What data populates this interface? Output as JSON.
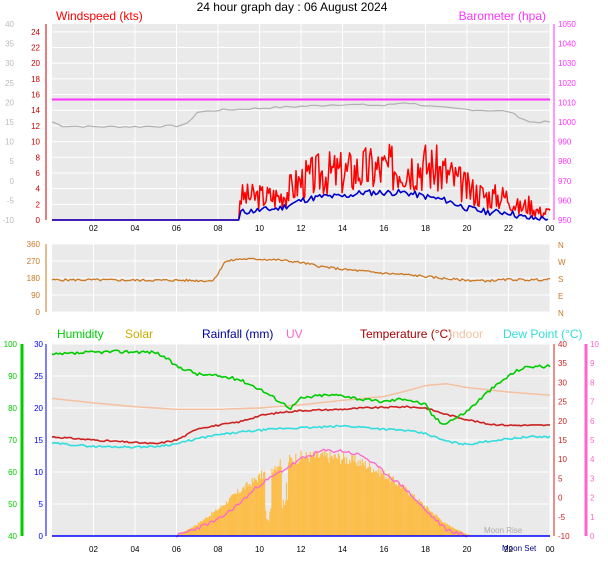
{
  "title": "24 hour graph day : 06 August 2024",
  "colors": {
    "plot_bg": "#eaeaea",
    "grid": "#ffffff",
    "wind": "#ff0000",
    "avg_wind": "#0000cc",
    "baro": "#ff33ff",
    "dir": "#cc7722",
    "humidity": "#00cc00",
    "solar": "#ffb833",
    "rain": "#0000ff",
    "uv": "#ff66cc",
    "temp": "#cc2222",
    "indoor": "#f5c0a0",
    "dew": "#33dddd",
    "faint_gray": "#bbbbbb"
  },
  "x_ticks": [
    "02",
    "04",
    "06",
    "08",
    "10",
    "12",
    "14",
    "16",
    "18",
    "20",
    "22",
    "00"
  ],
  "chart_data": [
    {
      "type": "line",
      "panel": "wind",
      "ylabel_left": "Windspeed (kts)",
      "ylabel_right": "Barometer (hpa)",
      "left_ticks": [
        "0",
        "2",
        "4",
        "6",
        "8",
        "10",
        "12",
        "14",
        "16",
        "18",
        "20",
        "22",
        "24"
      ],
      "faint_left_ticks": [
        "-10",
        "-5",
        "0",
        "5",
        "10",
        "15",
        "20",
        "25",
        "30",
        "35",
        "40"
      ],
      "right_ticks": [
        "950",
        "960",
        "970",
        "980",
        "990",
        "1000",
        "1010",
        "1020",
        "1030",
        "1040",
        "1050"
      ],
      "ylim": [
        0,
        25
      ],
      "baro_ylim": [
        950,
        1050
      ],
      "series": [
        {
          "name": "Windspeed (kts)",
          "x": [
            0,
            9,
            9.05,
            11,
            12,
            13,
            14,
            15,
            16,
            17,
            18,
            19,
            20,
            21,
            22,
            22.5,
            23,
            23.5,
            24
          ],
          "y": [
            0,
            0,
            3,
            3,
            5,
            6,
            6,
            6.5,
            6.5,
            7,
            7,
            6,
            4,
            3,
            3,
            1.5,
            2,
            1,
            1
          ]
        },
        {
          "name": "Barometer (hpa)",
          "x": [
            0,
            24
          ],
          "y": [
            1011.5,
            1011.5
          ]
        },
        {
          "name": "",
          "x": [
            0,
            9,
            9.05,
            11,
            12,
            13,
            14,
            15,
            16,
            17,
            18,
            19,
            20,
            21,
            22,
            22.5,
            23,
            24
          ],
          "y": [
            0,
            0,
            1,
            1.5,
            2.5,
            3,
            3,
            3.5,
            3.5,
            3.5,
            3,
            2.5,
            1.5,
            1,
            1,
            0.5,
            0.2,
            0.2
          ]
        },
        {
          "name": "",
          "x": [
            0,
            0.5,
            2,
            4,
            6,
            6.5,
            7,
            8,
            10,
            12,
            14,
            16,
            17,
            18,
            18.5,
            20,
            22,
            23,
            24
          ],
          "y": [
            15,
            14,
            13.8,
            13.8,
            14,
            14.5,
            17.5,
            18,
            18.5,
            19,
            19.5,
            19.2,
            20,
            19.2,
            18.8,
            18.2,
            17.7,
            15,
            15
          ]
        }
      ]
    },
    {
      "type": "line",
      "panel": "direction",
      "left_ticks": [
        "0",
        "90",
        "180",
        "270",
        "360"
      ],
      "right_ticks": [
        "N",
        "W",
        "S",
        "E",
        "N"
      ],
      "ylim": [
        0,
        360
      ],
      "series": [
        {
          "name": "",
          "x": [
            0,
            2,
            4,
            6,
            7.7,
            8,
            8.3,
            9,
            10,
            11,
            12,
            13,
            14,
            15,
            16,
            17,
            18,
            19,
            20,
            21,
            22,
            23,
            24
          ],
          "y": [
            170,
            170,
            168,
            168,
            165,
            200,
            265,
            280,
            280,
            275,
            262,
            240,
            226,
            216,
            205,
            198,
            188,
            176,
            168,
            165,
            172,
            170,
            172
          ]
        }
      ]
    },
    {
      "type": "line",
      "panel": "temperature",
      "legend": [
        "Humidity",
        "Solar",
        "Rainfall (mm)",
        "UV",
        "Temperature (°C)",
        "Indoor",
        "Dew Point (°C)"
      ],
      "ylim": [
        0,
        30
      ],
      "humidity_ticks": [
        "40",
        "50",
        "60",
        "70",
        "80",
        "90",
        "100"
      ],
      "rain_ticks": [
        "0",
        "5",
        "10",
        "15",
        "20",
        "25",
        "30"
      ],
      "temp_ticks": [
        "-10",
        "-5",
        "0",
        "5",
        "10",
        "15",
        "20",
        "25",
        "30",
        "35",
        "40"
      ],
      "uv_ticks": [
        "0",
        "1",
        "2",
        "3",
        "4",
        "5",
        "6",
        "7",
        "8",
        "9",
        "10"
      ],
      "annotations": [
        "Moon Rise",
        "Moon Set"
      ],
      "series": [
        {
          "name": "Humidity",
          "x": [
            0,
            1,
            2,
            3,
            4,
            5,
            5.5,
            6,
            6.5,
            7,
            8,
            9,
            10,
            11,
            11.5,
            12,
            13,
            14,
            15,
            16,
            17,
            18,
            18.3,
            18.8,
            19.5,
            20,
            20.5,
            21,
            22,
            22.5,
            23,
            24
          ],
          "y": [
            28.3,
            28.5,
            28.7,
            28.8,
            28.8,
            28.7,
            27.8,
            26.5,
            26,
            25.3,
            25,
            24.5,
            23,
            21,
            20,
            21.5,
            22,
            22,
            21.3,
            21,
            21.5,
            20.5,
            19,
            17.5,
            18.5,
            19.5,
            21,
            22.5,
            25,
            26,
            26.5,
            26.5
          ]
        },
        {
          "name": "Rainfall (mm)",
          "x": [
            0,
            24
          ],
          "y": [
            0,
            0
          ]
        },
        {
          "name": "Temperature (°C)",
          "x": [
            0,
            2,
            4,
            5,
            6,
            6.5,
            7,
            8,
            9,
            10,
            11,
            12,
            13,
            14,
            15,
            16,
            17,
            18,
            19,
            20,
            21,
            22,
            23,
            24
          ],
          "y": [
            15.5,
            15,
            14.6,
            14.4,
            15,
            15.8,
            16.8,
            17.3,
            17.8,
            18.8,
            19.3,
            19.6,
            19.7,
            19.8,
            20,
            20.1,
            20.2,
            20,
            19,
            18.2,
            17.5,
            17.3,
            17.3,
            17.3
          ]
        },
        {
          "name": "Indoor",
          "x": [
            0,
            2,
            4,
            6,
            8,
            10,
            12,
            14,
            16,
            17,
            18,
            19,
            20,
            22,
            24
          ],
          "y": [
            21.5,
            20.8,
            20.2,
            19.8,
            19.8,
            20,
            20.5,
            21.2,
            21.8,
            22.6,
            23.5,
            23.8,
            23.2,
            22.5,
            22
          ]
        },
        {
          "name": "Dew Point (°C)",
          "x": [
            0,
            2,
            4,
            5,
            6,
            7,
            8,
            9,
            10,
            11,
            12,
            13,
            14,
            15,
            16,
            17,
            18,
            19,
            20,
            21,
            22,
            23,
            24
          ],
          "y": [
            14.5,
            14,
            13.9,
            14,
            14.4,
            15.2,
            15.8,
            16.2,
            16.5,
            16.8,
            16.9,
            17,
            17.2,
            17,
            16.7,
            16.5,
            16,
            14.8,
            14.3,
            14.8,
            15.2,
            15.5,
            15.5
          ]
        },
        {
          "name": "Solar",
          "x": [
            6,
            7,
            8,
            9,
            10,
            11,
            12,
            13,
            14,
            15,
            16,
            17,
            18,
            19,
            20,
            20.3
          ],
          "y": [
            0,
            2,
            4.5,
            7.5,
            10,
            12.5,
            13.4,
            13.5,
            13.2,
            12.3,
            10.5,
            8,
            5,
            2,
            0.3,
            0
          ]
        },
        {
          "name": "UV",
          "x": [
            6,
            8,
            9,
            10,
            11,
            12,
            13,
            14,
            15,
            16,
            17,
            18,
            19,
            20
          ],
          "y": [
            0,
            2.5,
            5,
            8,
            10,
            12,
            13.3,
            13.3,
            12.5,
            10,
            7.5,
            4,
            1,
            0
          ]
        }
      ]
    }
  ]
}
